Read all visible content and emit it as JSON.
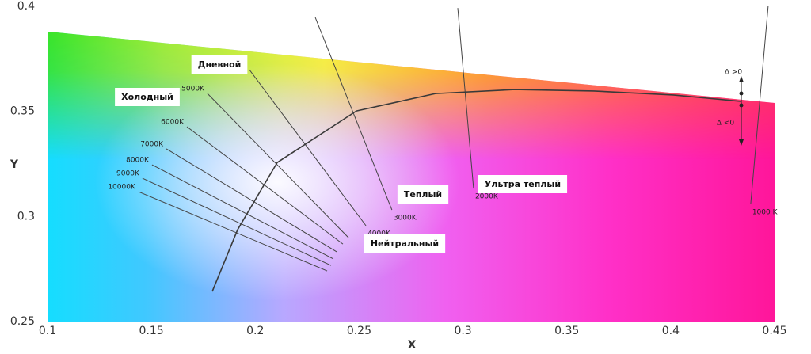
{
  "chart_data": {
    "type": "line",
    "x_label": "X",
    "y_label": "Y",
    "xlim": [
      0.1,
      0.45
    ],
    "ylim": [
      0.25,
      0.4
    ],
    "xticks": [
      0.1,
      0.15,
      0.2,
      0.25,
      0.3,
      0.35,
      0.4,
      0.45
    ],
    "yticks": [
      0.25,
      0.3,
      0.35,
      0.4
    ],
    "grid": false,
    "boundary": {
      "x": [
        0.1,
        0.45
      ],
      "y": [
        0.388,
        0.354
      ]
    },
    "series": [
      {
        "name": null,
        "color": "#3a3a3a",
        "x": [
          0.1793,
          0.1915,
          0.2106,
          0.2487,
          0.2868,
          0.3249,
          0.363,
          0.4012,
          0.4336
        ],
        "y": [
          0.2643,
          0.2937,
          0.3257,
          0.3502,
          0.3585,
          0.3604,
          0.3597,
          0.3578,
          0.3548
        ]
      }
    ],
    "isotherms": [
      {
        "label": "10000K",
        "x": [
          0.1438,
          0.2346
        ],
        "y": [
          0.3118,
          0.2741
        ]
      },
      {
        "label": "9000K",
        "x": [
          0.1457,
          0.2365
        ],
        "y": [
          0.3182,
          0.2767
        ]
      },
      {
        "label": "8000K",
        "x": [
          0.1503,
          0.2376
        ],
        "y": [
          0.3246,
          0.2798
        ]
      },
      {
        "label": "7000K",
        "x": [
          0.1572,
          0.2392
        ],
        "y": [
          0.3322,
          0.2832
        ]
      },
      {
        "label": "6000K",
        "x": [
          0.1671,
          0.2422
        ],
        "y": [
          0.3427,
          0.2869
        ]
      },
      {
        "label": "5000K",
        "x": [
          0.177,
          0.2449
        ],
        "y": [
          0.3585,
          0.2899
        ]
      },
      {
        "label": "4000K",
        "x": [
          0.1972,
          0.2533
        ],
        "y": [
          0.3698,
          0.2956
        ]
      },
      {
        "label": "3000K",
        "x": [
          0.2289,
          0.2658
        ],
        "y": [
          0.3947,
          0.3031
        ]
      },
      {
        "label": "2000K",
        "x": [
          0.2975,
          0.3051
        ],
        "y": [
          0.3992,
          0.3133
        ]
      },
      {
        "label": "1000 K",
        "x": [
          0.4469,
          0.4385
        ],
        "y": [
          0.4,
          0.3058
        ]
      }
    ],
    "annotations": [
      "Дневной",
      "Холодный",
      "Теплый",
      "Нейтральный",
      "Ультра теплый",
      "Δ >0",
      "Δ  <0"
    ]
  }
}
